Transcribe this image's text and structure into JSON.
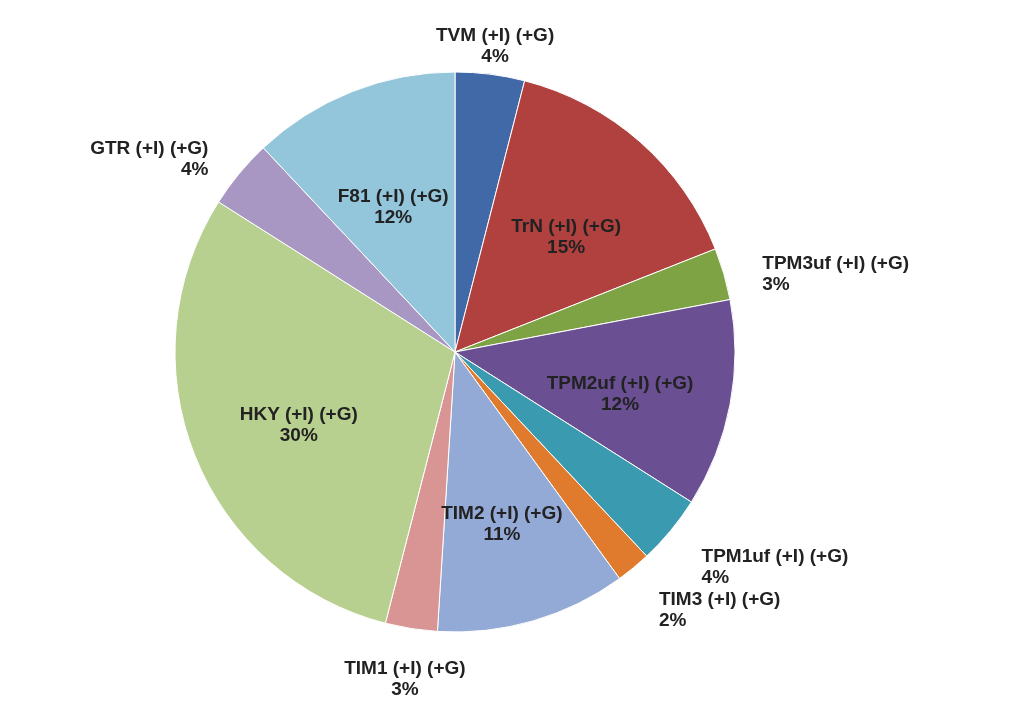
{
  "chart_data": {
    "type": "pie",
    "categories": [
      "TVM (+I) (+G)",
      "TrN (+I) (+G)",
      "TPM3uf (+I) (+G)",
      "TPM2uf (+I) (+G)",
      "TPM1uf (+I) (+G)",
      "TIM3 (+I) (+G)",
      "TIM2 (+I) (+G)",
      "TIM1 (+I) (+G)",
      "HKY (+I) (+G)",
      "GTR (+I) (+G)",
      "F81 (+I) (+G)"
    ],
    "values": [
      4,
      15,
      3,
      12,
      4,
      2,
      11,
      3,
      30,
      4,
      12
    ],
    "value_labels": [
      "4%",
      "15%",
      "3%",
      "12%",
      "4%",
      "2%",
      "11%",
      "3%",
      "30%",
      "4%",
      "12%"
    ],
    "colors": [
      "#4169a8",
      "#b0413e",
      "#7ea345",
      "#6a4f93",
      "#3a9bb0",
      "#e07b2e",
      "#94aad6",
      "#d99594",
      "#b8d08f",
      "#a897c2",
      "#93c6da"
    ]
  }
}
